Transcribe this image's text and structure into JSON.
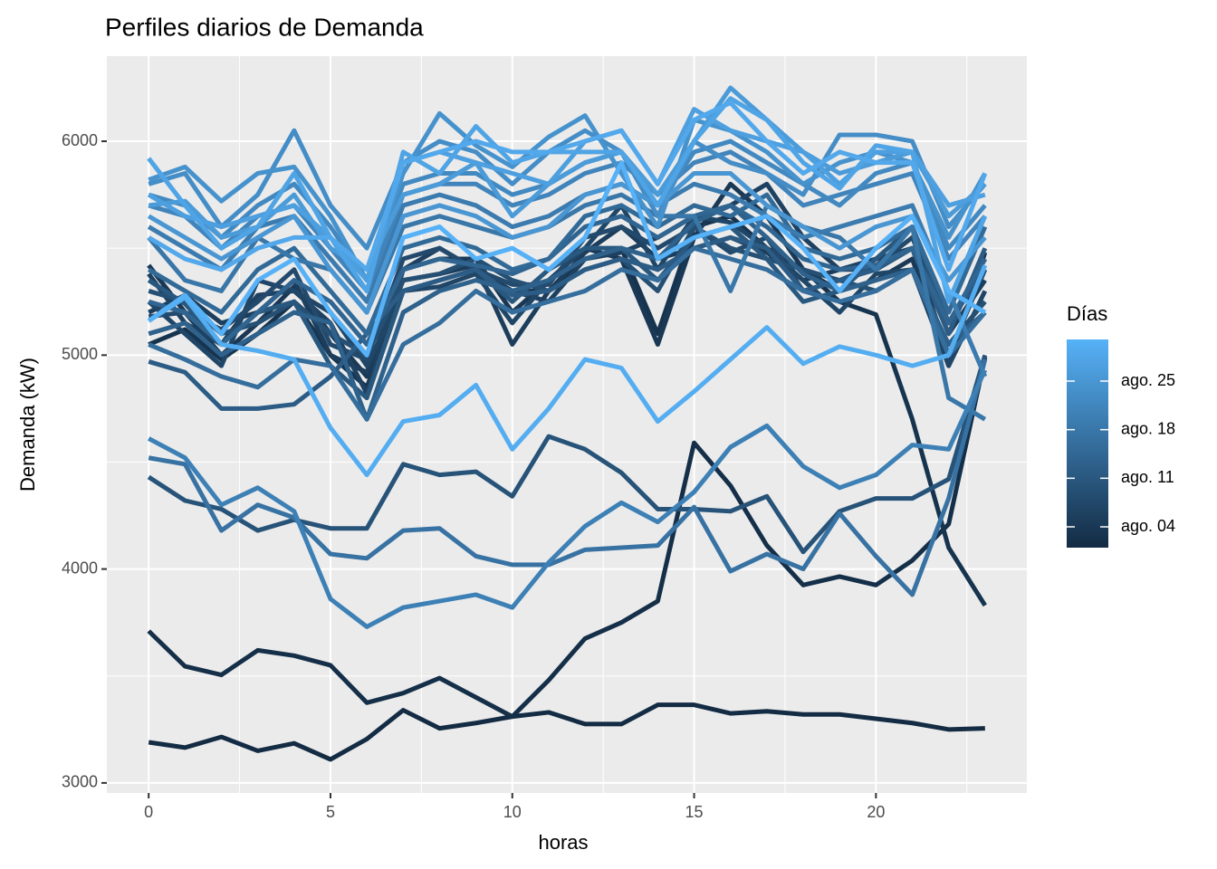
{
  "chart_data": {
    "type": "line",
    "title": "Perfiles diarios de Demanda",
    "x_label": "horas",
    "y_label": "Demanda (kW)",
    "x": [
      0,
      1,
      2,
      3,
      4,
      5,
      6,
      7,
      8,
      9,
      10,
      11,
      12,
      13,
      14,
      15,
      16,
      17,
      18,
      19,
      20,
      21,
      22,
      23
    ],
    "xlim": [
      -1.15,
      24.15
    ],
    "ylim": [
      2953,
      6398
    ],
    "xticks": [
      0,
      5,
      10,
      15,
      20
    ],
    "yticks": [
      3000,
      4000,
      5000,
      6000
    ],
    "minor_xticks": [
      2.5,
      7.5,
      12.5,
      17.5,
      22.5
    ],
    "minor_yticks": [
      3500,
      4500,
      5500
    ],
    "grid": true,
    "colorbar": {
      "title": "Días",
      "low_color": "#132B43",
      "high_color": "#56B1F7",
      "lim": [
        1,
        31
      ],
      "ticks": [
        {
          "value": 4,
          "label": "ago. 04"
        },
        {
          "value": 11,
          "label": "ago. 11"
        },
        {
          "value": 18,
          "label": "ago. 18"
        },
        {
          "value": 25,
          "label": "ago. 25"
        }
      ]
    },
    "series": [
      {
        "color": "#132B43",
        "values": [
          3190,
          3165,
          3215,
          3150,
          3185,
          3110,
          3205,
          3340,
          3255,
          3280,
          3310,
          3330,
          3275,
          3275,
          3365,
          3365,
          3325,
          3335,
          3320,
          3320,
          3300,
          3280,
          3250,
          3255
        ]
      },
      {
        "color": "#152F49",
        "values": [
          3710,
          3545,
          3505,
          3620,
          3595,
          3550,
          3375,
          3420,
          3490,
          3400,
          3310,
          3480,
          3675,
          3750,
          3850,
          4590,
          4390,
          4110,
          3925,
          3965,
          3925,
          4040,
          4210,
          4990
        ]
      },
      {
        "color": "#17344F",
        "values": [
          5050,
          5120,
          4980,
          5100,
          5250,
          5000,
          4850,
          5300,
          5350,
          5400,
          5300,
          5300,
          5450,
          5500,
          5100,
          5600,
          5650,
          5500,
          5400,
          5250,
          5190,
          4700,
          4100,
          3830
        ]
      },
      {
        "color": "#1A3855",
        "values": [
          5420,
          5200,
          5000,
          5150,
          5320,
          5100,
          4900,
          5400,
          5450,
          5450,
          5200,
          5350,
          5500,
          5450,
          5050,
          5550,
          5800,
          5650,
          5400,
          5300,
          5350,
          5450,
          4950,
          5480
        ]
      },
      {
        "color": "#1C3D5B",
        "values": [
          5200,
          5280,
          5150,
          5200,
          5350,
          5000,
          4920,
          5350,
          5380,
          5420,
          5050,
          5300,
          5480,
          5600,
          5450,
          5500,
          5550,
          5480,
          5350,
          5400,
          5400,
          5500,
          5100,
          5350
        ]
      },
      {
        "color": "#1E4161",
        "values": [
          5380,
          5150,
          5050,
          5280,
          5300,
          5150,
          4820,
          5400,
          5500,
          5400,
          5300,
          5250,
          5450,
          5480,
          5550,
          5650,
          5700,
          5800,
          5550,
          5400,
          5450,
          5500,
          5000,
          5400
        ]
      },
      {
        "color": "#204667",
        "values": [
          5250,
          5100,
          4950,
          5350,
          5300,
          5200,
          4950,
          5300,
          5320,
          5380,
          5150,
          5350,
          5500,
          5700,
          5400,
          5650,
          5620,
          5500,
          5350,
          5200,
          5380,
          5400,
          4950,
          5300
        ]
      },
      {
        "color": "#234A6D",
        "values": [
          5180,
          5200,
          5120,
          5250,
          5400,
          5050,
          4980,
          5450,
          5500,
          5400,
          5330,
          5330,
          5550,
          5600,
          5500,
          5600,
          5480,
          5550,
          5300,
          5350,
          5420,
          5550,
          5150,
          5450
        ]
      },
      {
        "color": "#254F73",
        "values": [
          5300,
          5250,
          5100,
          5150,
          5250,
          5100,
          5000,
          5350,
          5380,
          5450,
          5350,
          5300,
          5400,
          5450,
          5300,
          5600,
          5500,
          5450,
          5400,
          5350,
          5300,
          5400,
          5050,
          5250
        ]
      },
      {
        "color": "#275379",
        "values": [
          4430,
          4320,
          4280,
          4180,
          4230,
          4190,
          4190,
          4490,
          4440,
          4455,
          4340,
          4620,
          4560,
          4450,
          4280,
          4280,
          4270,
          4340,
          4080,
          4270,
          4330,
          4330,
          4420,
          5000
        ]
      },
      {
        "color": "#29587F",
        "values": [
          5350,
          5240,
          5050,
          5200,
          5250,
          4950,
          4800,
          5300,
          5350,
          5400,
          5250,
          5400,
          5500,
          5500,
          5350,
          5550,
          5600,
          5450,
          5250,
          5300,
          5450,
          5600,
          5150,
          5400
        ]
      },
      {
        "color": "#2C5C85",
        "values": [
          4970,
          4920,
          4750,
          4750,
          4770,
          4900,
          5100,
          5300,
          5350,
          5400,
          5280,
          5300,
          5400,
          5450,
          5400,
          5500,
          5550,
          5500,
          5300,
          5350,
          5400,
          5500,
          5100,
          5500
        ]
      },
      {
        "color": "#2E618B",
        "values": [
          5100,
          5150,
          5000,
          5100,
          5200,
          5150,
          4700,
          5200,
          5300,
          5350,
          5300,
          5350,
          5450,
          5500,
          5450,
          5620,
          5700,
          5550,
          5380,
          5300,
          5350,
          5400,
          5050,
          5200
        ]
      },
      {
        "color": "#306591",
        "values": [
          5250,
          5200,
          5050,
          5200,
          5350,
          5250,
          5050,
          5400,
          5450,
          5420,
          5380,
          5450,
          5600,
          5650,
          5550,
          5650,
          5700,
          5600,
          5450,
          5400,
          5420,
          5500,
          5150,
          5450
        ]
      },
      {
        "color": "#326A97",
        "values": [
          5400,
          5300,
          5200,
          5400,
          5500,
          5300,
          5100,
          5500,
          5550,
          5500,
          5400,
          5450,
          5650,
          5700,
          5600,
          5700,
          5650,
          5750,
          5500,
          5450,
          5500,
          5600,
          5200,
          5600
        ]
      },
      {
        "color": "#356E9D",
        "values": [
          5050,
          4980,
          4900,
          4850,
          4980,
          4950,
          4700,
          5050,
          5150,
          5300,
          5200,
          5250,
          5300,
          5400,
          5350,
          5500,
          5450,
          5400,
          5300,
          5250,
          5300,
          5400,
          5000,
          5200
        ]
      },
      {
        "color": "#3772A3",
        "values": [
          4520,
          4490,
          4180,
          4300,
          4240,
          4070,
          4050,
          4180,
          4190,
          4060,
          4020,
          4020,
          4090,
          4100,
          4110,
          4290,
          3990,
          4070,
          4000,
          4260,
          4060,
          3880,
          4330,
          4980
        ]
      },
      {
        "color": "#3977A9",
        "values": [
          5550,
          5350,
          5300,
          5550,
          5450,
          5400,
          5200,
          5600,
          5650,
          5600,
          5550,
          5600,
          5700,
          5750,
          5650,
          5650,
          5300,
          5700,
          5600,
          5550,
          5400,
          5600,
          4800,
          4700
        ]
      },
      {
        "color": "#3B7BAF",
        "values": [
          5600,
          5500,
          5400,
          5600,
          5650,
          5450,
          5250,
          5700,
          5750,
          5700,
          5600,
          5650,
          5750,
          5800,
          5700,
          5800,
          5750,
          5650,
          5550,
          5600,
          5650,
          5700,
          5300,
          4900
        ]
      },
      {
        "color": "#3D80B5",
        "values": [
          4610,
          4520,
          4300,
          4380,
          4270,
          3860,
          3730,
          3820,
          3850,
          3880,
          3820,
          4030,
          4200,
          4310,
          4220,
          4360,
          4570,
          4670,
          4480,
          4380,
          4440,
          4580,
          4560,
          4930
        ]
      },
      {
        "color": "#4084BB",
        "values": [
          5700,
          5650,
          5500,
          5650,
          5700,
          5500,
          5300,
          5750,
          5800,
          5800,
          5700,
          5750,
          5850,
          5900,
          5750,
          5900,
          5950,
          5850,
          5700,
          5750,
          5800,
          5850,
          5450,
          5650
        ]
      },
      {
        "color": "#4289C1",
        "values": [
          5750,
          5700,
          5550,
          5700,
          5800,
          5600,
          5350,
          5800,
          5850,
          5850,
          5750,
          5800,
          5900,
          5950,
          5700,
          5950,
          6000,
          5900,
          5800,
          5700,
          5850,
          5900,
          5500,
          5700
        ]
      },
      {
        "color": "#448DC7",
        "values": [
          5800,
          5850,
          5600,
          5750,
          6050,
          5700,
          5500,
          5900,
          6000,
          5950,
          5800,
          5950,
          6050,
          5950,
          5650,
          6000,
          5900,
          5850,
          5750,
          6030,
          6030,
          6000,
          5600,
          5800
        ]
      },
      {
        "color": "#4692CD",
        "values": [
          5820,
          5880,
          5720,
          5850,
          5880,
          5650,
          5350,
          5850,
          6130,
          5980,
          5880,
          6020,
          6120,
          5850,
          5600,
          6100,
          6050,
          5950,
          5800,
          5900,
          5950,
          5900,
          5550,
          5850
        ]
      },
      {
        "color": "#4996D3",
        "values": [
          5650,
          5550,
          5450,
          5550,
          5650,
          5400,
          5200,
          5650,
          5700,
          5650,
          5550,
          5600,
          5750,
          5800,
          5700,
          5850,
          5850,
          5700,
          5600,
          5500,
          5600,
          5650,
          5350,
          5550
        ]
      },
      {
        "color": "#4B9BD9",
        "values": [
          5700,
          5720,
          5550,
          5600,
          5750,
          5500,
          5400,
          5750,
          5800,
          5900,
          5650,
          5800,
          5900,
          5950,
          5750,
          6000,
          6250,
          6100,
          5950,
          5850,
          5900,
          5950,
          5650,
          5800
        ]
      },
      {
        "color": "#4D9FDF",
        "values": [
          5750,
          5650,
          5600,
          5650,
          5700,
          5550,
          5350,
          5900,
          5950,
          5900,
          5850,
          5800,
          6000,
          6050,
          5800,
          6150,
          6050,
          6000,
          5950,
          5800,
          5950,
          5950,
          5700,
          5750
        ]
      },
      {
        "color": "#4FA4E5",
        "values": [
          5920,
          5700,
          5500,
          5600,
          5850,
          5550,
          5300,
          5950,
          5850,
          6070,
          5900,
          5950,
          5950,
          5950,
          5700,
          6000,
          6200,
          6100,
          5900,
          5780,
          5980,
          5950,
          5250,
          5650
        ]
      },
      {
        "color": "#52A8EB",
        "values": [
          5550,
          5450,
          5400,
          5500,
          5550,
          5550,
          5400,
          5900,
          5950,
          6000,
          5950,
          5950,
          6000,
          6050,
          5800,
          6100,
          6180,
          6000,
          5850,
          5950,
          5900,
          5900,
          5400,
          5850
        ]
      },
      {
        "color": "#54ADF1",
        "values": [
          5160,
          5270,
          5050,
          5020,
          4980,
          4660,
          4440,
          4690,
          4720,
          4860,
          4560,
          4750,
          4980,
          4940,
          4690,
          4830,
          4980,
          5130,
          4960,
          5040,
          5000,
          4950,
          5000,
          5420
        ]
      },
      {
        "color": "#56B1F7",
        "values": [
          5160,
          5280,
          5100,
          5350,
          5450,
          5200,
          5000,
          5550,
          5600,
          5450,
          5500,
          5400,
          5550,
          5900,
          5450,
          5550,
          5600,
          5650,
          5500,
          5300,
          5500,
          5650,
          5300,
          5200
        ]
      }
    ]
  }
}
